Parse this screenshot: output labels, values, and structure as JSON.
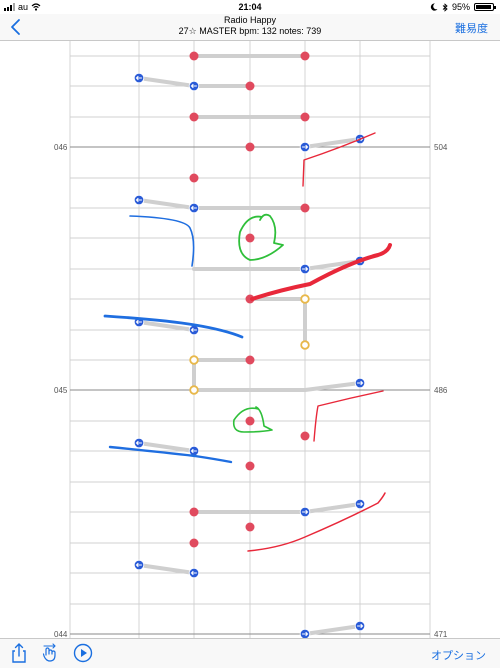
{
  "status": {
    "carrier": "au",
    "time": "21:04",
    "battery": "95%",
    "battery_level": 0.95
  },
  "header": {
    "title": "Radio Happy",
    "subtitle": "27☆ MASTER bpm: 132 notes: 739",
    "right_button": "難易度"
  },
  "measures": [
    {
      "left": "046",
      "right": "504"
    },
    {
      "left": "045",
      "right": "486"
    },
    {
      "left": "044",
      "right": "471"
    }
  ],
  "toolbar": {
    "options_label": "オプション"
  },
  "colors": {
    "accent": "#1a6fe0",
    "note_red": "#e04a5e",
    "note_blue": "#2a5bd7",
    "hold_yellow": "#e8b84a",
    "pen_red": "#e8283a",
    "pen_green": "#2fbf3a",
    "pen_blue": "#1f6ee0"
  },
  "icons": [
    "back-chevron-icon",
    "share-icon",
    "hand-swipe-icon",
    "play-icon",
    "bluetooth-icon",
    "moon-icon",
    "wifi-icon"
  ]
}
